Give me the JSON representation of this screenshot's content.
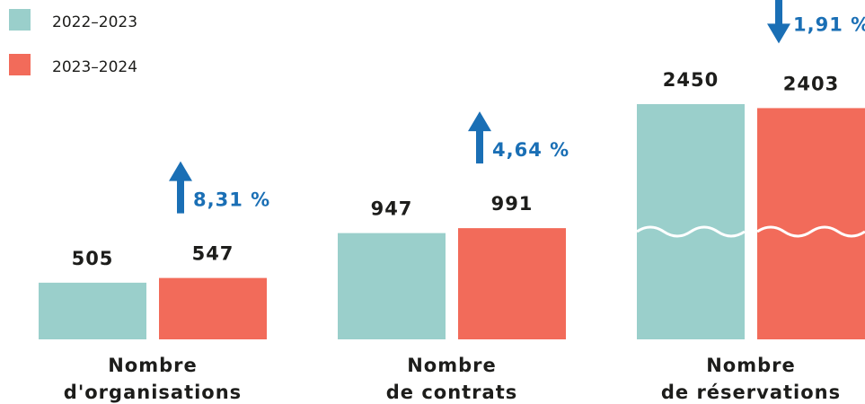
{
  "chart_data": {
    "type": "bar",
    "categories": [
      [
        "Nombre",
        "d'organisations"
      ],
      [
        "Nombre",
        "de contrats"
      ],
      [
        "Nombre",
        "de réservations"
      ]
    ],
    "series": [
      {
        "name": "2022–2023",
        "color": "#9acfcb",
        "values": [
          505,
          947,
          2450
        ]
      },
      {
        "name": "2023–2024",
        "color": "#f26b5a",
        "values": [
          547,
          991,
          2403
        ]
      }
    ],
    "changes": {
      "values": [
        8.31,
        4.64,
        1.91
      ],
      "value_labels": [
        "8,31 %",
        "4,64 %",
        "1,91 %"
      ],
      "directions": [
        "up",
        "up",
        "down"
      ],
      "color": "#1a6fb5"
    },
    "ylim": [
      0,
      1000
    ],
    "axis_break": true,
    "legend": "top-left"
  }
}
